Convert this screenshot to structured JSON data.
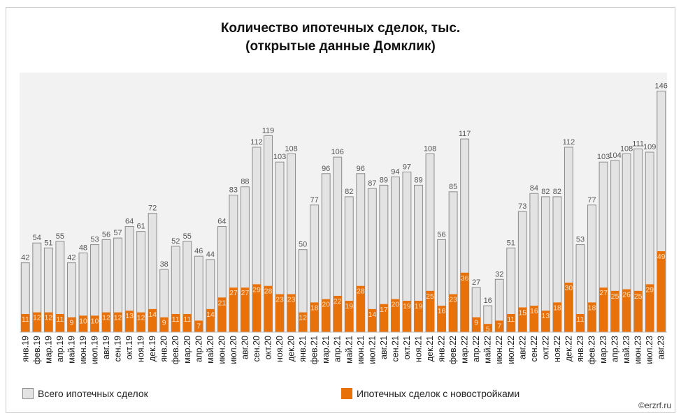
{
  "chart_data": {
    "type": "bar",
    "title": "Количество ипотечных сделок, тыс.",
    "subtitle": "(открытые данные Домклик)",
    "xlabel": "",
    "ylabel": "",
    "ylim": [
      0,
      150
    ],
    "grid": false,
    "legend": "bottom",
    "categories": [
      "янв.19",
      "фев.19",
      "мар.19",
      "апр.19",
      "май.19",
      "июн.19",
      "июл.19",
      "авг.19",
      "сен.19",
      "окт.19",
      "ноя.19",
      "дек.19",
      "янв.20",
      "фев.20",
      "мар.20",
      "апр.20",
      "май.20",
      "июн.20",
      "июл.20",
      "авг.20",
      "сен.20",
      "окт.20",
      "ноя.20",
      "дек.20",
      "янв.21",
      "фев.21",
      "мар.21",
      "апр.21",
      "май.21",
      "июн.21",
      "июл.21",
      "авг.21",
      "сен.21",
      "окт.21",
      "ноя.21",
      "дек.21",
      "янв.22",
      "фев.22",
      "мар.22",
      "апр.22",
      "май.22",
      "июн.22",
      "июл.22",
      "авг.22",
      "сен.22",
      "окт.22",
      "ноя.22",
      "дек.22",
      "янв.23",
      "фев.23",
      "мар.23",
      "апр.23",
      "май.23",
      "июн.23",
      "июл.23",
      "авг.23"
    ],
    "series": [
      {
        "name": "Всего ипотечных сделок",
        "color": "#e3e3e3",
        "values": [
          42,
          54,
          51,
          55,
          42,
          48,
          53,
          56,
          57,
          64,
          61,
          72,
          38,
          52,
          55,
          46,
          44,
          64,
          83,
          88,
          112,
          119,
          103,
          108,
          50,
          77,
          96,
          106,
          82,
          96,
          87,
          89,
          94,
          97,
          89,
          108,
          56,
          85,
          117,
          27,
          16,
          32,
          51,
          73,
          84,
          82,
          82,
          112,
          53,
          77,
          103,
          104,
          108,
          111,
          109,
          146
        ]
      },
      {
        "name": "Ипотечных сделок с новостройками",
        "color": "#e8710a",
        "values": [
          11,
          12,
          12,
          11,
          9,
          10,
          10,
          12,
          12,
          13,
          12,
          14,
          9,
          11,
          11,
          7,
          14,
          21,
          27,
          27,
          29,
          28,
          23,
          23,
          12,
          18,
          20,
          22,
          19,
          28,
          14,
          17,
          20,
          19,
          19,
          25,
          16,
          23,
          36,
          9,
          5,
          7,
          11,
          15,
          16,
          13,
          18,
          30,
          11,
          18,
          27,
          25,
          26,
          25,
          29,
          49
        ]
      }
    ]
  },
  "source": "©erzrf.ru"
}
